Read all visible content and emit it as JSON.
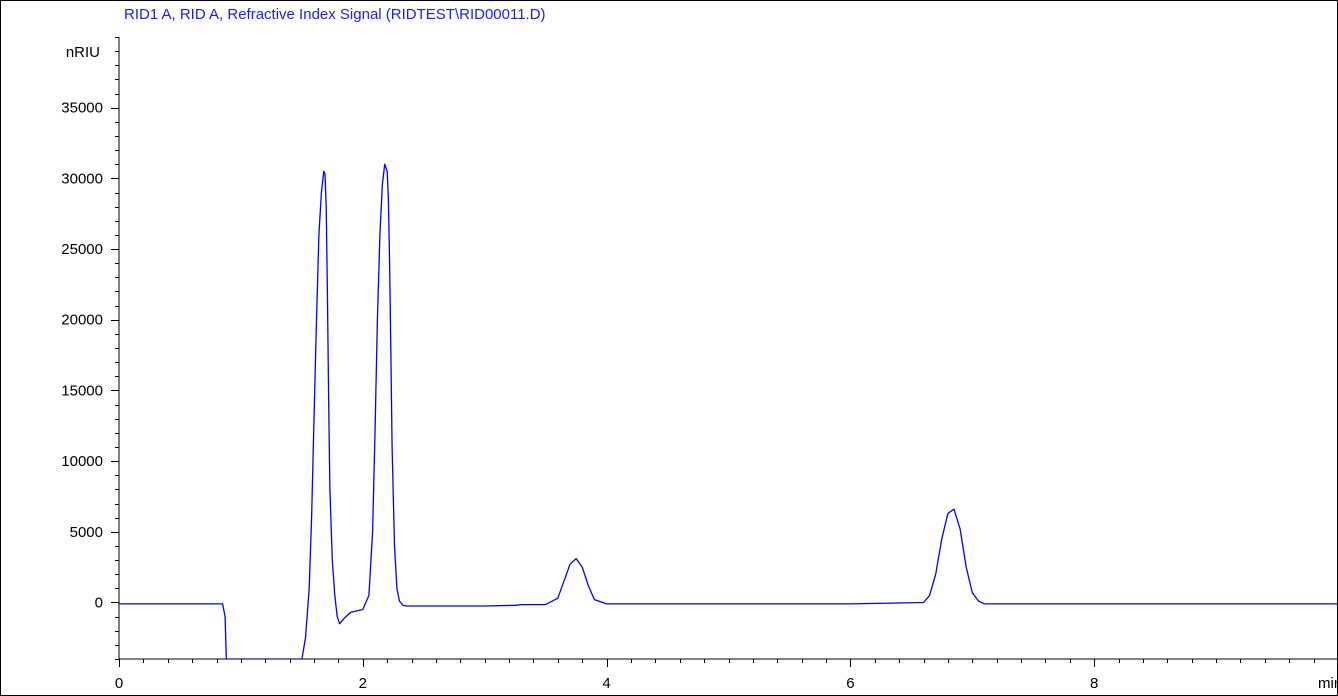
{
  "chart_data": {
    "type": "line",
    "title": "RID1 A, RID A, Refractive Index Signal (RIDTEST\\RID00011.D)",
    "xlabel": "min",
    "ylabel": "nRIU",
    "xlim": [
      0,
      10
    ],
    "ylim": [
      -4000,
      40000
    ],
    "x_ticks": [
      0,
      2,
      4,
      6,
      8
    ],
    "x_tick_labels": [
      "0",
      "2",
      "4",
      "6",
      "8"
    ],
    "y_ticks": [
      0,
      5000,
      10000,
      15000,
      20000,
      25000,
      30000,
      35000
    ],
    "y_tick_labels": [
      "0",
      "5000",
      "10000",
      "15000",
      "20000",
      "25000",
      "30000",
      "35000"
    ],
    "grid": false,
    "legend": "none",
    "colors": {
      "line": "#0000ff",
      "title": "#1a1aff",
      "axis": "#000000"
    },
    "series": [
      {
        "color": "#0000ff",
        "x": [
          0,
          0.5,
          0.85,
          0.87,
          0.88,
          0.9,
          1.0,
          1.2,
          1.4,
          1.5,
          1.53,
          1.56,
          1.58,
          1.6,
          1.62,
          1.64,
          1.66,
          1.68,
          1.69,
          1.7,
          1.71,
          1.72,
          1.73,
          1.75,
          1.77,
          1.79,
          1.81,
          1.85,
          1.9,
          1.95,
          2.0,
          2.05,
          2.08,
          2.1,
          2.12,
          2.14,
          2.16,
          2.18,
          2.2,
          2.21,
          2.22,
          2.23,
          2.24,
          2.26,
          2.28,
          2.3,
          2.33,
          2.36,
          2.4,
          2.45,
          3.0,
          3.25,
          3.3,
          3.5,
          3.6,
          3.65,
          3.7,
          3.75,
          3.8,
          3.85,
          3.9,
          4.0,
          5.0,
          6.0,
          6.6,
          6.65,
          6.7,
          6.75,
          6.8,
          6.85,
          6.9,
          6.95,
          7.0,
          7.05,
          7.1,
          8.0,
          9.0,
          10.0
        ],
        "y": [
          -100,
          -100,
          -100,
          -1000,
          -4000,
          -4000,
          -4000,
          -4000,
          -4000,
          -4000,
          -2500,
          1000,
          6000,
          13000,
          20000,
          26000,
          29000,
          30500,
          30300,
          28000,
          22000,
          14000,
          8000,
          3000,
          500,
          -1000,
          -1500,
          -1100,
          -700,
          -600,
          -500,
          500,
          5000,
          12000,
          20000,
          26000,
          29500,
          31000,
          30500,
          28500,
          24000,
          18000,
          11000,
          4000,
          1000,
          100,
          -200,
          -250,
          -250,
          -250,
          -250,
          -200,
          -150,
          -150,
          300,
          1500,
          2700,
          3100,
          2500,
          1200,
          200,
          -100,
          -100,
          -100,
          0,
          500,
          2000,
          4500,
          6300,
          6600,
          5200,
          2500,
          700,
          100,
          -100,
          -100,
          -100,
          -100
        ]
      }
    ]
  }
}
